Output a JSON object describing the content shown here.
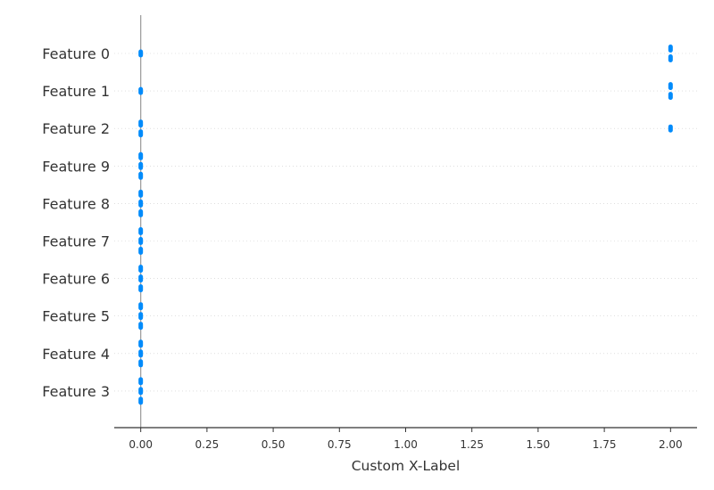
{
  "chart_data": {
    "type": "scatter",
    "subtype": "beeswarm",
    "title": "",
    "xlabel": "Custom X-Label",
    "ylabel": "",
    "xlim": [
      -0.1,
      2.1
    ],
    "xticks": [
      0.0,
      0.25,
      0.5,
      0.75,
      1.0,
      1.25,
      1.5,
      1.75,
      2.0
    ],
    "xtick_labels": [
      "0.00",
      "0.25",
      "0.50",
      "0.75",
      "1.00",
      "1.25",
      "1.50",
      "1.75",
      "2.00"
    ],
    "zero_line": true,
    "grid": "horizontal dotted per feature",
    "point_color": "#008bfb",
    "axis_color": "#333333",
    "features": [
      {
        "label": "Feature 0",
        "points": [
          {
            "x": 0.0,
            "count": 1
          },
          {
            "x": 2.0,
            "count": 2
          }
        ]
      },
      {
        "label": "Feature 1",
        "points": [
          {
            "x": 0.0,
            "count": 1
          },
          {
            "x": 2.0,
            "count": 2
          }
        ]
      },
      {
        "label": "Feature 2",
        "points": [
          {
            "x": 0.0,
            "count": 2
          },
          {
            "x": 2.0,
            "count": 1
          }
        ]
      },
      {
        "label": "Feature 9",
        "points": [
          {
            "x": 0.0,
            "count": 3
          }
        ]
      },
      {
        "label": "Feature 8",
        "points": [
          {
            "x": 0.0,
            "count": 3
          }
        ]
      },
      {
        "label": "Feature 7",
        "points": [
          {
            "x": 0.0,
            "count": 3
          }
        ]
      },
      {
        "label": "Feature 6",
        "points": [
          {
            "x": 0.0,
            "count": 3
          }
        ]
      },
      {
        "label": "Feature 5",
        "points": [
          {
            "x": 0.0,
            "count": 3
          }
        ]
      },
      {
        "label": "Feature 4",
        "points": [
          {
            "x": 0.0,
            "count": 3
          }
        ]
      },
      {
        "label": "Feature 3",
        "points": [
          {
            "x": 0.0,
            "count": 3
          }
        ]
      }
    ]
  }
}
